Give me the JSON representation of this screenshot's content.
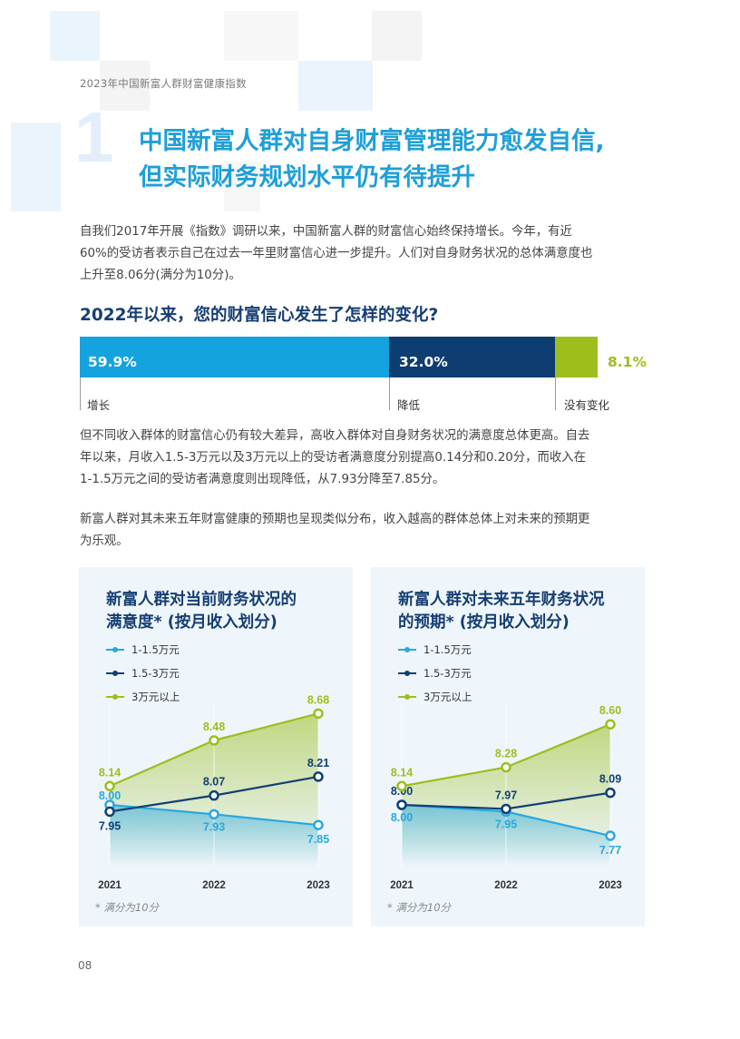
{
  "header": {
    "running_head": "2023年中国新富人群财富健康指数",
    "section_number": "1",
    "title_line1": "中国新富人群对自身财富管理能力愈发自信,",
    "title_line2": "但实际财务规划水平仍有待提升"
  },
  "paragraphs": {
    "p1_l1": "自我们2017年开展《指数》调研以来，中国新富人群的财富信心始终保持增长。今年，有近",
    "p1_l2": "60%的受访者表示自己在过去一年里财富信心进一步提升。人们对自身财务状况的总体满意度也",
    "p1_l3": "上升至8.06分(满分为10分)。",
    "p2_l1": "但不同收入群体的财富信心仍有较大差异，高收入群体对自身财务状况的满意度总体更高。自去",
    "p2_l2": "年以来，月收入1.5-3万元以及3万元以上的受访者满意度分别提高0.14分和0.20分，而收入在",
    "p2_l3": "1-1.5万元之间的受访者满意度则出现降低，从7.93分降至7.85分。",
    "p3_l1": "新富人群对其未来五年财富健康的预期也呈现类似分布，收入越高的群体总体上对未来的预期更",
    "p3_l2": "为乐观。"
  },
  "question": "2022年以来，您的财富信心发生了怎样的变化?",
  "stacked": {
    "segments": [
      {
        "label": "增长",
        "value": 59.9,
        "value_text": "59.9%",
        "color": "#15a3e0"
      },
      {
        "label": "降低",
        "value": 32.0,
        "value_text": "32.0%",
        "color": "#0e3d72"
      },
      {
        "label": "没有变化",
        "value": 8.1,
        "value_text": "8.1%",
        "color": "#9dbe1d"
      }
    ]
  },
  "chart_data": [
    {
      "type": "line",
      "title_line1": "新富人群对当前财务状况的",
      "title_line2": "满意度* (按月收入划分)",
      "x": [
        "2021",
        "2022",
        "2023"
      ],
      "series": [
        {
          "name": "1-1.5万元",
          "values": [
            8.0,
            7.93,
            7.85
          ],
          "labels": [
            "8.00",
            "7.93",
            "7.85"
          ],
          "color": "#29a8e0"
        },
        {
          "name": "1.5-3万元",
          "values": [
            7.95,
            8.07,
            8.21
          ],
          "labels": [
            "7.95",
            "8.07",
            "8.21"
          ],
          "color": "#123f74"
        },
        {
          "name": "3万元以上",
          "values": [
            8.14,
            8.48,
            8.68
          ],
          "labels": [
            "8.14",
            "8.48",
            "8.68"
          ],
          "color": "#9dbe1d"
        }
      ],
      "footnote": "* 满分为10分"
    },
    {
      "type": "line",
      "title_line1": "新富人群对未来五年财务状况",
      "title_line2": "的预期* (按月收入划分)",
      "x": [
        "2021",
        "2022",
        "2023"
      ],
      "series": [
        {
          "name": "1-1.5万元",
          "values": [
            8.0,
            7.95,
            7.77
          ],
          "labels": [
            "8.00",
            "7.95",
            "7.77"
          ],
          "color": "#29a8e0"
        },
        {
          "name": "1.5-3万元",
          "values": [
            8.0,
            7.97,
            8.09
          ],
          "labels": [
            "8.00",
            "7.97",
            "8.09"
          ],
          "color": "#123f74"
        },
        {
          "name": "3万元以上",
          "values": [
            8.14,
            8.28,
            8.6
          ],
          "labels": [
            "8.14",
            "8.28",
            "8.60"
          ],
          "color": "#9dbe1d"
        }
      ],
      "footnote": "* 满分为10分"
    }
  ],
  "page_number": "08"
}
